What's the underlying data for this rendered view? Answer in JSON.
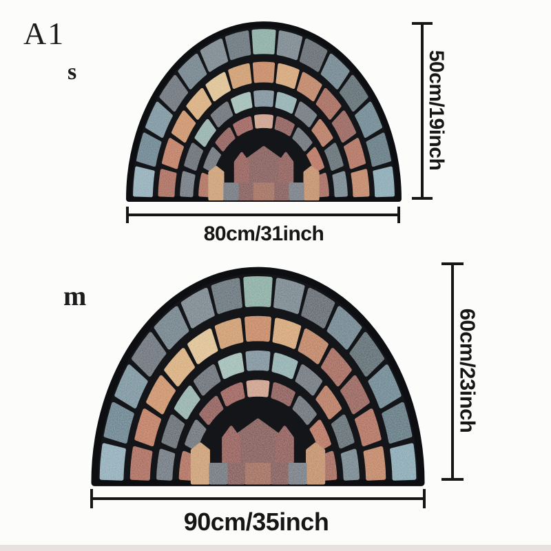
{
  "page": {
    "background_color": "#fcfcfb",
    "bottom_strip_color": "#e9e1e0"
  },
  "variant_label": "A1",
  "products": {
    "small": {
      "size_label": "s",
      "height_label": "50cm/19inch",
      "width_label": "80cm/31inch"
    },
    "large": {
      "size_label": "m",
      "height_label": "60cm/23inch",
      "width_label": "90cm/35inch"
    }
  },
  "mat_design": {
    "description": "half-round stone mosaic doormat",
    "grout_color": "#141519",
    "border_color": "#0d0e11",
    "rings": [
      {
        "r0": 0.83,
        "r1": 1.0,
        "colors": [
          "#8fb4c2",
          "#4f7b8c",
          "#6e93a1",
          "#515f6d",
          "#5d7785",
          "#6b7e8a",
          "#49616e",
          "#85b3a6",
          "#6a7f8a",
          "#3e505c",
          "#5b7d8c",
          "#2f5560",
          "#55808f",
          "#3d6b7a",
          "#83aebc"
        ]
      },
      {
        "r0": 0.665,
        "r1": 0.81,
        "colors": [
          "#b0522c",
          "#c96f3a",
          "#d88f4d",
          "#e7b371",
          "#eecb90",
          "#db9c57",
          "#d2813f",
          "#e2a968",
          "#c87a40",
          "#a94d28",
          "#963d22",
          "#b85c30",
          "#cc7e45"
        ]
      },
      {
        "r0": 0.525,
        "r1": 0.645,
        "colors": [
          "#5c6a77",
          "#46545f",
          "#93b8b2",
          "#4e5b66",
          "#a3c6bd",
          "#74909e",
          "#8fb6b8",
          "#5a6773",
          "#c06c39",
          "#3c5863",
          "#647f8b"
        ]
      },
      {
        "r0": 0.4,
        "r1": 0.505,
        "colors": [
          "#b5592e",
          "#56616d",
          "#8e2d21",
          "#a03a28",
          "#daa288",
          "#8a2c20",
          "#525e6a",
          "#c06134",
          "#a84d2a"
        ]
      }
    ],
    "center_tiles": [
      {
        "name": "keystone-pentagon",
        "color": "#7c2a1e",
        "points": [
          [
            -0.105,
            0.1
          ],
          [
            0.105,
            0.1
          ],
          [
            0.155,
            0.215
          ],
          [
            0,
            0.3
          ],
          [
            -0.155,
            0.215
          ]
        ]
      },
      {
        "name": "arch-arrow-left",
        "color": "#94311f",
        "points": [
          [
            -0.215,
            0.1
          ],
          [
            -0.12,
            0.1
          ],
          [
            -0.12,
            0.215
          ],
          [
            -0.167,
            0.265
          ],
          [
            -0.215,
            0.215
          ]
        ]
      },
      {
        "name": "arch-arrow-right",
        "color": "#8c2d1e",
        "points": [
          [
            0.12,
            0.1
          ],
          [
            0.215,
            0.1
          ],
          [
            0.215,
            0.215
          ],
          [
            0.167,
            0.265
          ],
          [
            0.12,
            0.215
          ]
        ]
      },
      {
        "name": "tan-pillar-left",
        "color": "#d8a162",
        "points": [
          [
            -0.41,
            0
          ],
          [
            -0.31,
            0
          ],
          [
            -0.31,
            0.155
          ],
          [
            -0.36,
            0.185
          ],
          [
            -0.41,
            0.155
          ]
        ]
      },
      {
        "name": "tan-pillar-right",
        "color": "#cd8c50",
        "points": [
          [
            0.31,
            0
          ],
          [
            0.41,
            0
          ],
          [
            0.41,
            0.155
          ],
          [
            0.36,
            0.185
          ],
          [
            0.31,
            0.155
          ]
        ]
      },
      {
        "name": "copper-base-center",
        "color": "#a3562f",
        "points": [
          [
            -0.075,
            0
          ],
          [
            0.075,
            0
          ],
          [
            0.075,
            0.088
          ],
          [
            -0.075,
            0.088
          ]
        ]
      },
      {
        "name": "red-base-left",
        "color": "#7b2a1f",
        "points": [
          [
            -0.185,
            0
          ],
          [
            -0.09,
            0
          ],
          [
            -0.09,
            0.088
          ],
          [
            -0.185,
            0.088
          ]
        ]
      },
      {
        "name": "red-base-right",
        "color": "#7b2a1f",
        "points": [
          [
            0.09,
            0
          ],
          [
            0.185,
            0
          ],
          [
            0.185,
            0.088
          ],
          [
            0.09,
            0.088
          ]
        ]
      },
      {
        "name": "slate-base-left",
        "color": "#5d6873",
        "points": [
          [
            -0.295,
            0
          ],
          [
            -0.2,
            0
          ],
          [
            -0.2,
            0.088
          ],
          [
            -0.295,
            0.088
          ]
        ]
      },
      {
        "name": "slate-base-right",
        "color": "#66717c",
        "points": [
          [
            0.2,
            0
          ],
          [
            0.295,
            0
          ],
          [
            0.295,
            0.088
          ],
          [
            0.2,
            0.088
          ]
        ]
      }
    ]
  }
}
